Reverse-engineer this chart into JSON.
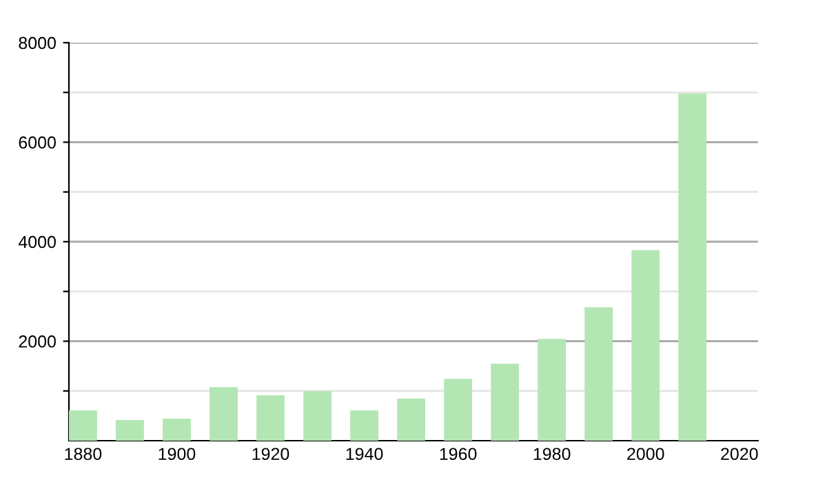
{
  "chart_data": {
    "type": "bar",
    "x": [
      1880,
      1890,
      1900,
      1910,
      1920,
      1930,
      1940,
      1950,
      1960,
      1970,
      1980,
      1990,
      2000,
      2010
    ],
    "values": [
      608,
      414,
      442,
      1077,
      912,
      994,
      608,
      847,
      1243,
      1547,
      2044,
      2680,
      3831,
      6980
    ],
    "color": "#b3e6b3",
    "xlim": [
      1877,
      2024
    ],
    "xticks": [
      1880,
      1900,
      1920,
      1940,
      1960,
      1980,
      2000,
      2020
    ],
    "ylim": [
      0,
      8000
    ],
    "yticks": [
      {
        "value": 1000,
        "label": null
      },
      2000,
      {
        "value": 3000,
        "label": null
      },
      4000,
      {
        "value": 5000,
        "label": null
      },
      6000,
      {
        "value": 7000,
        "label": null
      },
      8000
    ],
    "grid": "y",
    "legend": false
  }
}
